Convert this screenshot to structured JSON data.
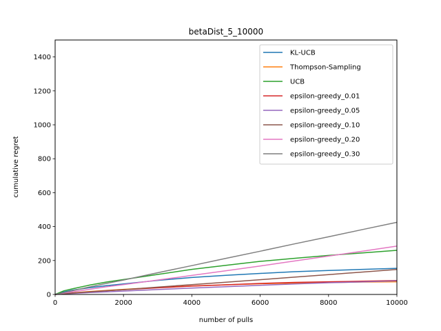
{
  "chart_data": {
    "type": "line",
    "title": "betaDist_5_10000",
    "xlabel": "number of pulls",
    "ylabel": "cumulative regret",
    "xlim": [
      0,
      10000
    ],
    "ylim": [
      0,
      1500
    ],
    "xticks": [
      0,
      2000,
      4000,
      6000,
      8000,
      10000
    ],
    "yticks": [
      0,
      200,
      400,
      600,
      800,
      1000,
      1200,
      1400
    ],
    "grid": false,
    "legend_position": "top-right",
    "x": [
      0,
      250,
      500,
      1000,
      1500,
      2000,
      3000,
      4000,
      5000,
      6000,
      7000,
      8000,
      9000,
      10000
    ],
    "series": [
      {
        "name": "KL-UCB",
        "color": "#1f77b4",
        "values": [
          0,
          15,
          25,
          40,
          52,
          62,
          83,
          100,
          113,
          124,
          134,
          141,
          148,
          154
        ]
      },
      {
        "name": "Thompson-Sampling",
        "color": "#ff7f0e",
        "values": [
          0,
          5,
          9,
          17,
          24,
          30,
          41,
          50,
          57,
          63,
          67,
          70,
          73,
          75
        ]
      },
      {
        "name": "UCB",
        "color": "#2ca02c",
        "values": [
          0,
          21,
          33,
          55,
          73,
          88,
          118,
          148,
          172,
          195,
          213,
          230,
          245,
          260
        ]
      },
      {
        "name": "epsilon-greedy_0.01",
        "color": "#d62728",
        "values": [
          0,
          4,
          8,
          15,
          22,
          28,
          39,
          49,
          57,
          65,
          71,
          75,
          78,
          82
        ]
      },
      {
        "name": "epsilon-greedy_0.05",
        "color": "#9467bd",
        "values": [
          0,
          3,
          6,
          11,
          15,
          20,
          29,
          38,
          46,
          54,
          62,
          69,
          74,
          80
        ]
      },
      {
        "name": "epsilon-greedy_0.10",
        "color": "#8c564b",
        "values": [
          0,
          4,
          8,
          15,
          22,
          28,
          43,
          58,
          72,
          87,
          102,
          117,
          132,
          147
        ]
      },
      {
        "name": "epsilon-greedy_0.20",
        "color": "#e377c2",
        "values": [
          0,
          8,
          15,
          30,
          45,
          58,
          85,
          112,
          140,
          168,
          197,
          226,
          255,
          285
        ]
      },
      {
        "name": "epsilon-greedy_0.30",
        "color": "#7f7f7f",
        "values": [
          0,
          11,
          22,
          44,
          65,
          85,
          128,
          170,
          213,
          255,
          298,
          340,
          383,
          425
        ]
      }
    ]
  }
}
